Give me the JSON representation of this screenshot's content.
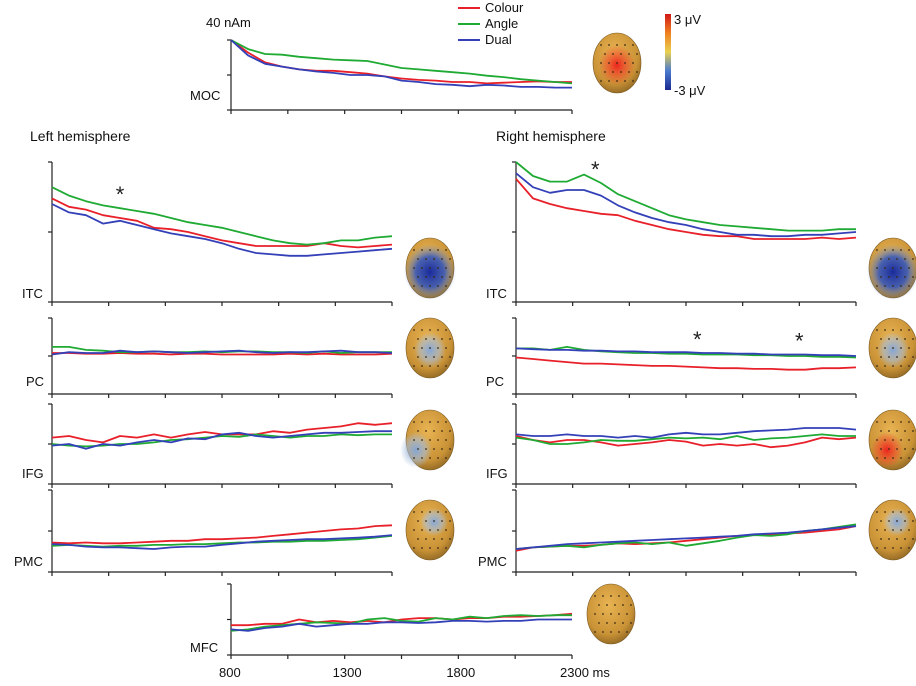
{
  "figure": {
    "scale_label": "40 nAm",
    "time_unit_label": "ms",
    "left_hemisphere_title": "Left hemisphere",
    "right_hemisphere_title": "Right hemisphere",
    "colorbar": {
      "max_label": "3 μV",
      "min_label": "-3 μV"
    }
  },
  "chart_data": {
    "type": "line",
    "x": [
      800,
      875,
      950,
      1025,
      1100,
      1175,
      1250,
      1325,
      1400,
      1475,
      1550,
      1625,
      1700,
      1775,
      1850,
      1925,
      2000,
      2075,
      2150,
      2225,
      2300
    ],
    "xticks": [
      800,
      1300,
      1800,
      2300
    ],
    "xtick_labels": [
      "800",
      "1300",
      "1800",
      "2300 ms"
    ],
    "series_meta": [
      {
        "name": "Colour",
        "color": "#e8202a"
      },
      {
        "name": "Angle",
        "color": "#1faa33"
      },
      {
        "name": "Dual",
        "color": "#3340b8"
      }
    ],
    "colors": {
      "positive": "#e8202a",
      "negative": "#2030a0",
      "neutral": "#c8953a"
    },
    "panels": [
      {
        "id": "moc",
        "label": "MOC",
        "series": [
          {
            "name": "Colour",
            "values": [
              1.0,
              0.82,
              0.68,
              0.62,
              0.58,
              0.56,
              0.56,
              0.54,
              0.52,
              0.48,
              0.45,
              0.43,
              0.42,
              0.4,
              0.4,
              0.38,
              0.39,
              0.4,
              0.41,
              0.4,
              0.4
            ]
          },
          {
            "name": "Angle",
            "values": [
              1.0,
              0.87,
              0.8,
              0.79,
              0.76,
              0.74,
              0.72,
              0.71,
              0.7,
              0.65,
              0.6,
              0.58,
              0.56,
              0.54,
              0.52,
              0.49,
              0.47,
              0.44,
              0.42,
              0.4,
              0.38
            ]
          },
          {
            "name": "Dual",
            "values": [
              1.0,
              0.78,
              0.66,
              0.62,
              0.58,
              0.55,
              0.53,
              0.5,
              0.5,
              0.48,
              0.42,
              0.4,
              0.37,
              0.36,
              0.34,
              0.36,
              0.35,
              0.33,
              0.33,
              0.32,
              0.32
            ]
          }
        ]
      },
      {
        "id": "itc-left",
        "label": "ITC",
        "series": [
          {
            "name": "Colour",
            "values": [
              0.74,
              0.68,
              0.66,
              0.62,
              0.6,
              0.58,
              0.53,
              0.52,
              0.5,
              0.47,
              0.44,
              0.42,
              0.4,
              0.4,
              0.4,
              0.4,
              0.42,
              0.4,
              0.39,
              0.4,
              0.41
            ]
          },
          {
            "name": "Angle",
            "values": [
              0.82,
              0.76,
              0.72,
              0.69,
              0.67,
              0.65,
              0.63,
              0.6,
              0.57,
              0.55,
              0.53,
              0.5,
              0.47,
              0.44,
              0.42,
              0.41,
              0.42,
              0.44,
              0.44,
              0.46,
              0.47
            ]
          },
          {
            "name": "Dual",
            "values": [
              0.7,
              0.64,
              0.62,
              0.56,
              0.58,
              0.55,
              0.52,
              0.49,
              0.47,
              0.45,
              0.42,
              0.38,
              0.35,
              0.34,
              0.33,
              0.33,
              0.34,
              0.35,
              0.36,
              0.37,
              0.38
            ]
          }
        ]
      },
      {
        "id": "itc-right",
        "label": "ITC",
        "series": [
          {
            "name": "Colour",
            "values": [
              0.88,
              0.74,
              0.7,
              0.67,
              0.65,
              0.63,
              0.62,
              0.58,
              0.55,
              0.52,
              0.5,
              0.48,
              0.47,
              0.47,
              0.45,
              0.45,
              0.45,
              0.45,
              0.46,
              0.45,
              0.46
            ]
          },
          {
            "name": "Angle",
            "values": [
              1.0,
              0.9,
              0.86,
              0.86,
              0.91,
              0.85,
              0.77,
              0.72,
              0.67,
              0.62,
              0.59,
              0.57,
              0.55,
              0.54,
              0.53,
              0.52,
              0.51,
              0.51,
              0.51,
              0.52,
              0.52
            ]
          },
          {
            "name": "Dual",
            "values": [
              0.92,
              0.82,
              0.78,
              0.8,
              0.8,
              0.76,
              0.69,
              0.64,
              0.6,
              0.57,
              0.55,
              0.52,
              0.5,
              0.48,
              0.48,
              0.47,
              0.47,
              0.48,
              0.48,
              0.49,
              0.5
            ]
          }
        ]
      },
      {
        "id": "pc-left",
        "label": "PC",
        "series": [
          {
            "name": "Colour",
            "values": [
              0.54,
              0.54,
              0.53,
              0.53,
              0.54,
              0.53,
              0.53,
              0.52,
              0.53,
              0.53,
              0.52,
              0.52,
              0.52,
              0.52,
              0.53,
              0.52,
              0.53,
              0.52,
              0.52,
              0.52,
              0.53
            ]
          },
          {
            "name": "Angle",
            "values": [
              0.62,
              0.62,
              0.58,
              0.57,
              0.55,
              0.55,
              0.56,
              0.55,
              0.55,
              0.56,
              0.55,
              0.56,
              0.56,
              0.55,
              0.55,
              0.54,
              0.56,
              0.54,
              0.55,
              0.55,
              0.55
            ]
          },
          {
            "name": "Dual",
            "values": [
              0.52,
              0.55,
              0.54,
              0.54,
              0.57,
              0.55,
              0.56,
              0.55,
              0.54,
              0.55,
              0.56,
              0.57,
              0.55,
              0.54,
              0.55,
              0.55,
              0.56,
              0.57,
              0.55,
              0.55,
              0.54
            ]
          }
        ]
      },
      {
        "id": "pc-right",
        "label": "PC",
        "series": [
          {
            "name": "Colour",
            "values": [
              0.48,
              0.46,
              0.44,
              0.42,
              0.4,
              0.4,
              0.39,
              0.38,
              0.37,
              0.37,
              0.36,
              0.35,
              0.34,
              0.34,
              0.33,
              0.33,
              0.32,
              0.32,
              0.34,
              0.34,
              0.35
            ]
          },
          {
            "name": "Angle",
            "values": [
              0.6,
              0.6,
              0.58,
              0.62,
              0.58,
              0.56,
              0.55,
              0.54,
              0.54,
              0.53,
              0.53,
              0.52,
              0.52,
              0.52,
              0.51,
              0.51,
              0.5,
              0.5,
              0.49,
              0.49,
              0.48
            ]
          },
          {
            "name": "Dual",
            "values": [
              0.6,
              0.59,
              0.58,
              0.58,
              0.57,
              0.57,
              0.56,
              0.56,
              0.55,
              0.55,
              0.55,
              0.54,
              0.54,
              0.53,
              0.53,
              0.52,
              0.52,
              0.52,
              0.51,
              0.51,
              0.5
            ]
          }
        ]
      },
      {
        "id": "ifg-left",
        "label": "IFG",
        "series": [
          {
            "name": "Colour",
            "values": [
              0.58,
              0.6,
              0.55,
              0.52,
              0.6,
              0.58,
              0.62,
              0.58,
              0.62,
              0.65,
              0.62,
              0.62,
              0.62,
              0.66,
              0.64,
              0.68,
              0.7,
              0.72,
              0.76,
              0.74,
              0.76
            ]
          },
          {
            "name": "Angle",
            "values": [
              0.5,
              0.48,
              0.47,
              0.48,
              0.5,
              0.5,
              0.52,
              0.55,
              0.56,
              0.58,
              0.6,
              0.59,
              0.62,
              0.6,
              0.58,
              0.6,
              0.6,
              0.62,
              0.61,
              0.62,
              0.62
            ]
          },
          {
            "name": "Dual",
            "values": [
              0.48,
              0.5,
              0.44,
              0.5,
              0.48,
              0.52,
              0.55,
              0.52,
              0.57,
              0.56,
              0.62,
              0.64,
              0.6,
              0.58,
              0.6,
              0.62,
              0.64,
              0.64,
              0.65,
              0.66,
              0.66
            ]
          }
        ]
      },
      {
        "id": "ifg-right",
        "label": "IFG",
        "series": [
          {
            "name": "Colour",
            "values": [
              0.6,
              0.55,
              0.52,
              0.55,
              0.55,
              0.52,
              0.48,
              0.5,
              0.52,
              0.55,
              0.53,
              0.48,
              0.5,
              0.48,
              0.5,
              0.46,
              0.48,
              0.52,
              0.58,
              0.56,
              0.58
            ]
          },
          {
            "name": "Angle",
            "values": [
              0.58,
              0.55,
              0.5,
              0.5,
              0.52,
              0.55,
              0.54,
              0.54,
              0.56,
              0.58,
              0.57,
              0.58,
              0.56,
              0.6,
              0.55,
              0.57,
              0.58,
              0.6,
              0.62,
              0.6,
              0.6
            ]
          },
          {
            "name": "Dual",
            "values": [
              0.62,
              0.6,
              0.6,
              0.62,
              0.6,
              0.6,
              0.58,
              0.6,
              0.58,
              0.62,
              0.64,
              0.62,
              0.62,
              0.64,
              0.66,
              0.67,
              0.68,
              0.7,
              0.7,
              0.7,
              0.68
            ]
          }
        ]
      },
      {
        "id": "pmc-left",
        "label": "PMC",
        "series": [
          {
            "name": "Colour",
            "values": [
              0.36,
              0.35,
              0.36,
              0.35,
              0.35,
              0.36,
              0.37,
              0.38,
              0.38,
              0.4,
              0.4,
              0.41,
              0.42,
              0.44,
              0.46,
              0.48,
              0.5,
              0.52,
              0.53,
              0.56,
              0.57
            ]
          },
          {
            "name": "Angle",
            "values": [
              0.32,
              0.33,
              0.32,
              0.31,
              0.32,
              0.32,
              0.33,
              0.33,
              0.34,
              0.34,
              0.35,
              0.36,
              0.36,
              0.37,
              0.37,
              0.38,
              0.38,
              0.39,
              0.4,
              0.42,
              0.44
            ]
          },
          {
            "name": "Dual",
            "values": [
              0.34,
              0.33,
              0.31,
              0.3,
              0.3,
              0.29,
              0.28,
              0.3,
              0.31,
              0.31,
              0.33,
              0.35,
              0.37,
              0.38,
              0.39,
              0.4,
              0.4,
              0.41,
              0.42,
              0.43,
              0.45
            ]
          }
        ]
      },
      {
        "id": "pmc-right",
        "label": "PMC",
        "series": [
          {
            "name": "Colour",
            "values": [
              0.26,
              0.3,
              0.31,
              0.32,
              0.32,
              0.33,
              0.35,
              0.34,
              0.35,
              0.36,
              0.38,
              0.4,
              0.42,
              0.44,
              0.45,
              0.46,
              0.47,
              0.48,
              0.5,
              0.52,
              0.56
            ]
          },
          {
            "name": "Angle",
            "values": [
              0.28,
              0.3,
              0.31,
              0.32,
              0.3,
              0.33,
              0.35,
              0.36,
              0.34,
              0.36,
              0.32,
              0.35,
              0.38,
              0.42,
              0.45,
              0.44,
              0.46,
              0.5,
              0.52,
              0.55,
              0.58
            ]
          },
          {
            "name": "Dual",
            "values": [
              0.28,
              0.3,
              0.32,
              0.34,
              0.35,
              0.36,
              0.37,
              0.38,
              0.39,
              0.4,
              0.41,
              0.42,
              0.43,
              0.44,
              0.46,
              0.47,
              0.48,
              0.5,
              0.52,
              0.54,
              0.56
            ]
          }
        ]
      },
      {
        "id": "mfc",
        "label": "MFC",
        "series": [
          {
            "name": "Colour",
            "values": [
              0.42,
              0.42,
              0.44,
              0.44,
              0.5,
              0.46,
              0.48,
              0.46,
              0.48,
              0.46,
              0.5,
              0.52,
              0.52,
              0.5,
              0.52,
              0.52,
              0.54,
              0.54,
              0.55,
              0.56,
              0.58
            ]
          },
          {
            "name": "Angle",
            "values": [
              0.34,
              0.36,
              0.4,
              0.42,
              0.44,
              0.46,
              0.45,
              0.44,
              0.5,
              0.52,
              0.48,
              0.47,
              0.52,
              0.5,
              0.54,
              0.52,
              0.55,
              0.56,
              0.55,
              0.56,
              0.56
            ]
          },
          {
            "name": "Dual",
            "values": [
              0.36,
              0.34,
              0.38,
              0.4,
              0.44,
              0.4,
              0.42,
              0.44,
              0.44,
              0.46,
              0.46,
              0.45,
              0.46,
              0.48,
              0.48,
              0.47,
              0.48,
              0.48,
              0.5,
              0.5,
              0.5
            ]
          }
        ]
      }
    ],
    "significance_markers": [
      {
        "panel": "itc-left",
        "x": 1100,
        "label": "*"
      },
      {
        "panel": "itc-right",
        "x": 1150,
        "label": "*"
      },
      {
        "panel": "pc-right",
        "x": 1600,
        "label": "*"
      },
      {
        "panel": "pc-right",
        "x": 2050,
        "label": "*"
      }
    ],
    "topography": [
      {
        "panel": "moc",
        "pattern": "positive-center"
      },
      {
        "panel": "itc-left",
        "pattern": "negative-occipital"
      },
      {
        "panel": "itc-right",
        "pattern": "negative-occipital"
      },
      {
        "panel": "pc-left",
        "pattern": "weak-negative-parietal"
      },
      {
        "panel": "pc-right",
        "pattern": "weak-negative-parietal"
      },
      {
        "panel": "ifg-left",
        "pattern": "weak-negative-left-frontal"
      },
      {
        "panel": "ifg-right",
        "pattern": "positive-right-frontal"
      },
      {
        "panel": "pmc-left",
        "pattern": "weak-negative-top"
      },
      {
        "panel": "pmc-right",
        "pattern": "weak-negative-top"
      },
      {
        "panel": "mfc",
        "pattern": "neutral"
      }
    ]
  }
}
